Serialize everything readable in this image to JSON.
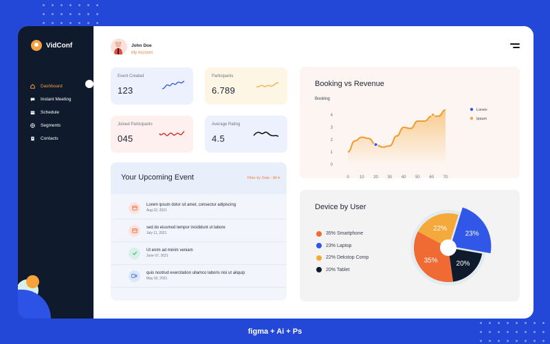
{
  "app": {
    "name": "VidConf"
  },
  "user": {
    "name": "John Doe",
    "link": "My Account"
  },
  "sidebar": {
    "items": [
      {
        "label": "Dashboard",
        "icon": "home-icon",
        "active": true
      },
      {
        "label": "Instant Meeting",
        "icon": "chat-icon",
        "active": false
      },
      {
        "label": "Schedule",
        "icon": "calendar-icon",
        "active": false
      },
      {
        "label": "Segments",
        "icon": "globe-icon",
        "active": false
      },
      {
        "label": "Contacts",
        "icon": "contact-book-icon",
        "active": false
      }
    ]
  },
  "stats": [
    {
      "label": "Event Created",
      "value": "123",
      "color": "#2f5be6"
    },
    {
      "label": "Participants",
      "value": "6.789",
      "color": "#f6b14a"
    },
    {
      "label": "Joined Participants",
      "value": "045",
      "color": "#d8282c"
    },
    {
      "label": "Average Rating",
      "value": "4.5",
      "color": "#111111"
    }
  ],
  "events": {
    "title": "Your Upcoming Event",
    "filter": "Filter by Date : All",
    "items": [
      {
        "title": "Lorem ipsum dolor sit amet, consectur adipiscing",
        "date": "Aug 22, 2021",
        "icon": "calendar-icon",
        "color": "#f0684a",
        "bg": "#fbe3dc"
      },
      {
        "title": "sed do eiusmod tempor incididunt ut labore",
        "date": "July 11, 2021",
        "icon": "calendar-icon",
        "color": "#f0684a",
        "bg": "#fbe3dc"
      },
      {
        "title": "Ut enim ad minim veniam",
        "date": "June 07, 2021",
        "icon": "check-icon",
        "color": "#3fb28a",
        "bg": "#d7f1e6"
      },
      {
        "title": "quis nostrud exercitation ullamco laboris nisi ut aliquip",
        "date": "May 03, 2021",
        "icon": "video-icon",
        "color": "#4a7de8",
        "bg": "#dbe6fb"
      }
    ]
  },
  "booking": {
    "title": "Booking vs Revenue"
  },
  "device": {
    "title": "Device by User",
    "legend": [
      {
        "label": "35% Smartphone",
        "color": "#ef6b33"
      },
      {
        "label": "23% Laptop",
        "color": "#3157e8"
      },
      {
        "label": "22% Dekstop Comp",
        "color": "#f6a93b"
      },
      {
        "label": "20% Tablet",
        "color": "#0f1b2d"
      }
    ]
  },
  "footer": {
    "text": "figma + Ai + Ps"
  },
  "chart_data": [
    {
      "type": "area",
      "title": "Booking vs Revenue",
      "ylabel": "Booking",
      "xlabel": "",
      "x_ticks": [
        0,
        10,
        20,
        30,
        40,
        50,
        60,
        70
      ],
      "y_ticks": [
        0,
        1,
        2,
        3,
        4
      ],
      "xlim": [
        0,
        70
      ],
      "ylim": [
        0,
        4
      ],
      "legend": [
        "Lorem",
        "Ipsum"
      ],
      "legend_colors": [
        "#3157e8",
        "#f6a93b"
      ],
      "legend_position": "right",
      "series": [
        {
          "name": "Lorem",
          "x": [
            0,
            5,
            10,
            15,
            20,
            25,
            30,
            35,
            40,
            45,
            50,
            55,
            60,
            65,
            70
          ],
          "y": [
            1,
            1.9,
            2.2,
            2.1,
            1.6,
            1.4,
            1.5,
            2.3,
            3.0,
            2.9,
            3.5,
            3.5,
            3.9,
            3.9,
            4.4
          ]
        }
      ],
      "highlight_points": [
        {
          "x": 20,
          "y": 1.6,
          "color": "#3157e8"
        },
        {
          "x": 61,
          "y": 4.0,
          "color": "#f6a93b"
        }
      ]
    },
    {
      "type": "pie",
      "title": "Device by User",
      "labels": [
        "Smartphone",
        "Laptop",
        "Dekstop Comp",
        "Tablet"
      ],
      "values": [
        35,
        23,
        22,
        20
      ],
      "slice_labels": [
        "35%",
        "23%",
        "22%",
        "20%"
      ],
      "colors": [
        "#ef6b33",
        "#3157e8",
        "#f6a93b",
        "#0f1b2d"
      ]
    }
  ]
}
